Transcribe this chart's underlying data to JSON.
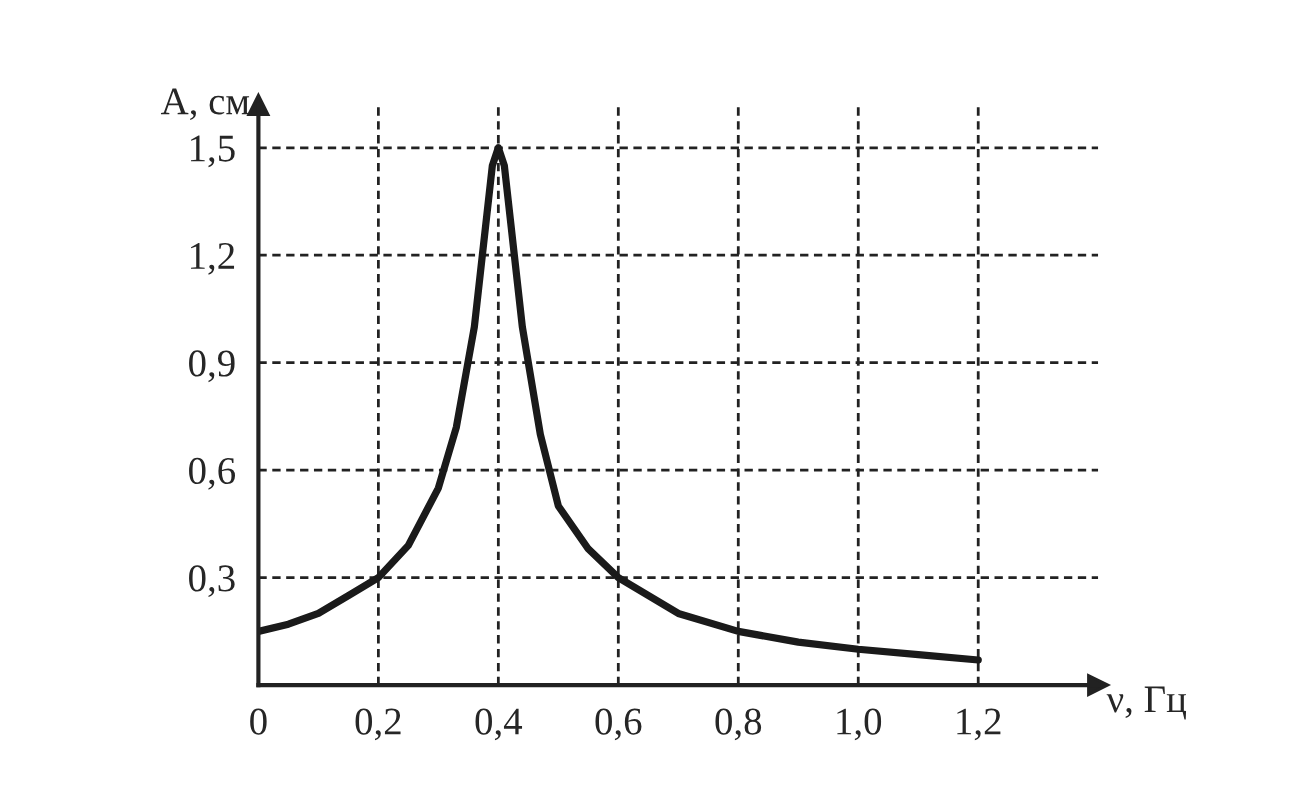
{
  "chart_data": {
    "type": "line",
    "xlabel": "ν, Гц",
    "ylabel": "A, см",
    "x": [
      0,
      0.05,
      0.1,
      0.15,
      0.2,
      0.25,
      0.3,
      0.33,
      0.36,
      0.38,
      0.39,
      0.4,
      0.41,
      0.42,
      0.44,
      0.47,
      0.5,
      0.55,
      0.6,
      0.7,
      0.8,
      0.9,
      1.0,
      1.1,
      1.2
    ],
    "series": [
      {
        "color": "#1a1a1a",
        "values": [
          0.15,
          0.17,
          0.2,
          0.25,
          0.3,
          0.39,
          0.55,
          0.72,
          1.0,
          1.3,
          1.45,
          1.5,
          1.45,
          1.3,
          1.0,
          0.7,
          0.5,
          0.38,
          0.3,
          0.2,
          0.15,
          0.12,
          0.1,
          0.085,
          0.07
        ]
      }
    ],
    "xlim": [
      0,
      1.4
    ],
    "ylim": [
      0,
      1.62
    ],
    "xticks": [
      0,
      {
        "value": 0.2,
        "label": "0,2"
      },
      {
        "value": 0.4,
        "label": "0,4"
      },
      {
        "value": 0.6,
        "label": "0,6"
      },
      {
        "value": 0.8,
        "label": "0,8"
      },
      {
        "value": 1.0,
        "label": "1,0"
      },
      {
        "value": 1.2,
        "label": "1,2"
      }
    ],
    "yticks": [
      {
        "value": 0.3,
        "label": "0,3"
      },
      {
        "value": 0.6,
        "label": "0,6"
      },
      {
        "value": 0.9,
        "label": "0,9"
      },
      {
        "value": 1.2,
        "label": "1,2"
      },
      {
        "value": 1.5,
        "label": "1,5"
      }
    ],
    "grid": true,
    "marker": "none",
    "line_style": "solid"
  }
}
